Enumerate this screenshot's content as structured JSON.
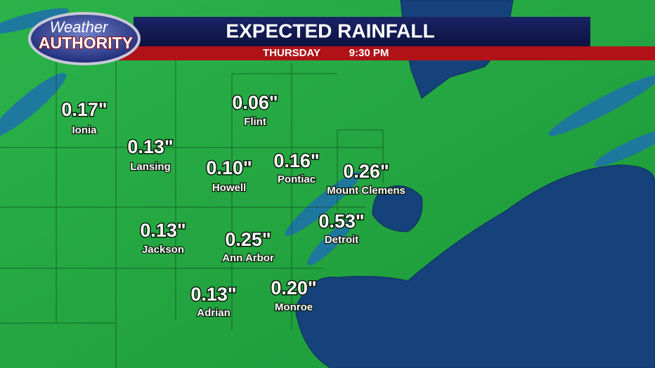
{
  "header": {
    "logo_top": "Weather",
    "logo_bottom": "AUTHORITY",
    "title": "EXPECTED RAINFALL",
    "day": "THURSDAY",
    "time": "9:30 PM"
  },
  "locations": [
    {
      "amount": "0.17\"",
      "name": "Ionia"
    },
    {
      "amount": "0.06\"",
      "name": "Flint"
    },
    {
      "amount": "0.13\"",
      "name": "Lansing"
    },
    {
      "amount": "0.10\"",
      "name": "Howell"
    },
    {
      "amount": "0.16\"",
      "name": "Pontiac"
    },
    {
      "amount": "0.26\"",
      "name": "Mount Clemens"
    },
    {
      "amount": "0.53\"",
      "name": "Detroit"
    },
    {
      "amount": "0.13\"",
      "name": "Jackson"
    },
    {
      "amount": "0.25\"",
      "name": "Ann Arbor"
    },
    {
      "amount": "0.13\"",
      "name": "Adrian"
    },
    {
      "amount": "0.20\"",
      "name": "Monroe"
    }
  ]
}
